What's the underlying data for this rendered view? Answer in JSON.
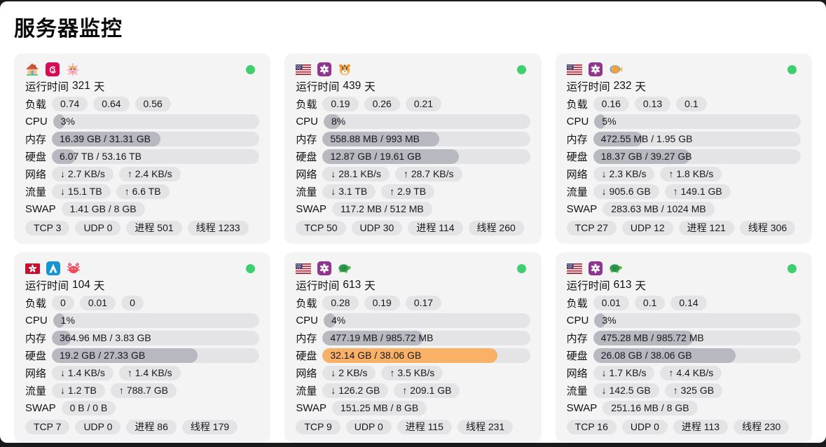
{
  "page": {
    "title": "服务器监控"
  },
  "labels": {
    "uptime_prefix": "运行时间",
    "uptime_suffix": "天",
    "load": "负载",
    "cpu": "CPU",
    "mem": "内存",
    "disk": "硬盘",
    "net": "网络",
    "traffic": "流量",
    "swap": "SWAP"
  },
  "colors": {
    "bar_fill": "#b7b8c0",
    "bar_fill_warn": "#f8b166",
    "status_online": "#3ecf6e"
  },
  "servers": [
    {
      "icons": [
        "house-icon",
        "debian-icon",
        "blowfish-icon"
      ],
      "status": "online",
      "uptime_days": "321",
      "load": [
        "0.74",
        "0.64",
        "0.56"
      ],
      "cpu": {
        "text": "3%",
        "pct": 3,
        "level": "normal"
      },
      "mem": {
        "text": "16.39 GB / 31.31 GB",
        "pct": 52.4,
        "level": "normal"
      },
      "disk": {
        "text": "6.07 TB / 53.16 TB",
        "pct": 11.4,
        "level": "normal"
      },
      "net": [
        "↓ 2.7 KB/s",
        "↑ 2.4 KB/s"
      ],
      "traffic": [
        "↓ 15.1 TB",
        "↑ 6.6 TB"
      ],
      "swap": "1.41 GB / 8 GB",
      "stats": [
        "TCP 3",
        "UDP 0",
        "进程 501",
        "线程 1233"
      ]
    },
    {
      "icons": [
        "us-flag-icon",
        "centos-icon",
        "tiger-icon"
      ],
      "status": "online",
      "uptime_days": "439",
      "load": [
        "0.19",
        "0.26",
        "0.21"
      ],
      "cpu": {
        "text": "8%",
        "pct": 8,
        "level": "normal"
      },
      "mem": {
        "text": "558.88 MB / 993 MB",
        "pct": 56.3,
        "level": "normal"
      },
      "disk": {
        "text": "12.87 GB / 19.61 GB",
        "pct": 65.6,
        "level": "normal"
      },
      "net": [
        "↓ 28.1 KB/s",
        "↑ 28.7 KB/s"
      ],
      "traffic": [
        "↓ 3.1 TB",
        "↑ 2.9 TB"
      ],
      "swap": "117.2 MB / 512 MB",
      "stats": [
        "TCP 50",
        "UDP 30",
        "进程 114",
        "线程 260"
      ]
    },
    {
      "icons": [
        "us-flag-icon",
        "centos-icon",
        "tropical-fish-icon"
      ],
      "status": "online",
      "uptime_days": "232",
      "load": [
        "0.16",
        "0.13",
        "0.1"
      ],
      "cpu": {
        "text": "5%",
        "pct": 5,
        "level": "normal"
      },
      "mem": {
        "text": "472.55 MB / 1.95 GB",
        "pct": 23.7,
        "level": "normal"
      },
      "disk": {
        "text": "18.37 GB / 39.27 GB",
        "pct": 46.8,
        "level": "normal"
      },
      "net": [
        "↓ 2.3 KB/s",
        "↑ 1.8 KB/s"
      ],
      "traffic": [
        "↓ 905.6 GB",
        "↑ 149.1 GB"
      ],
      "swap": "283.63 MB / 1024 MB",
      "stats": [
        "TCP 27",
        "UDP 12",
        "进程 121",
        "线程 306"
      ]
    },
    {
      "icons": [
        "hk-flag-icon",
        "arch-icon",
        "crab-icon"
      ],
      "status": "online",
      "uptime_days": "104",
      "load": [
        "0",
        "0.01",
        "0"
      ],
      "cpu": {
        "text": "1%",
        "pct": 1,
        "level": "normal"
      },
      "mem": {
        "text": "364.96 MB / 3.83 GB",
        "pct": 9.3,
        "level": "normal"
      },
      "disk": {
        "text": "19.2 GB / 27.33 GB",
        "pct": 70.3,
        "level": "normal"
      },
      "net": [
        "↓ 1.4 KB/s",
        "↑ 1.4 KB/s"
      ],
      "traffic": [
        "↓ 1.2 TB",
        "↑ 788.7 GB"
      ],
      "swap": "0 B / 0 B",
      "stats": [
        "TCP 7",
        "UDP 0",
        "进程 86",
        "线程 179"
      ]
    },
    {
      "icons": [
        "us-flag-icon",
        "centos-icon",
        "turtle-icon"
      ],
      "status": "online",
      "uptime_days": "613",
      "load": [
        "0.28",
        "0.19",
        "0.17"
      ],
      "cpu": {
        "text": "4%",
        "pct": 4,
        "level": "normal"
      },
      "mem": {
        "text": "477.19 MB / 985.72 MB",
        "pct": 48.4,
        "level": "normal"
      },
      "disk": {
        "text": "32.14 GB / 38.06 GB",
        "pct": 84.4,
        "level": "warn"
      },
      "net": [
        "↓ 2 KB/s",
        "↑ 3.5 KB/s"
      ],
      "traffic": [
        "↓ 126.2 GB",
        "↑ 209.1 GB"
      ],
      "swap": "151.25 MB / 8 GB",
      "stats": [
        "TCP 9",
        "UDP 0",
        "进程 115",
        "线程 231"
      ]
    },
    {
      "icons": [
        "us-flag-icon",
        "centos-icon",
        "turtle-icon"
      ],
      "status": "online",
      "uptime_days": "613",
      "load": [
        "0.01",
        "0.1",
        "0.14"
      ],
      "cpu": {
        "text": "3%",
        "pct": 3,
        "level": "normal"
      },
      "mem": {
        "text": "475.28 MB / 985.72 MB",
        "pct": 48.2,
        "level": "normal"
      },
      "disk": {
        "text": "26.08 GB / 38.06 GB",
        "pct": 68.5,
        "level": "normal"
      },
      "net": [
        "↓ 1.7 KB/s",
        "↑ 4.4 KB/s"
      ],
      "traffic": [
        "↓ 142.5 GB",
        "↑ 325 GB"
      ],
      "swap": "251.16 MB / 8 GB",
      "stats": [
        "TCP 16",
        "UDP 0",
        "进程 113",
        "线程 230"
      ]
    }
  ]
}
